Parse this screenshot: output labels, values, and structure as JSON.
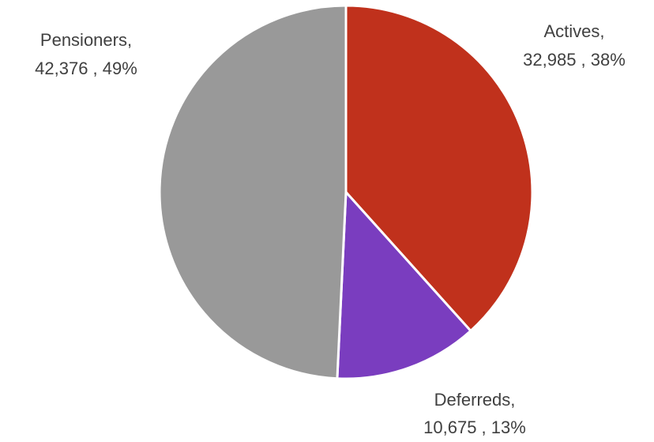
{
  "chart_data": {
    "type": "pie",
    "title": "",
    "slices": [
      {
        "name": "Actives",
        "value": 32985,
        "value_label": "32,985",
        "percent_label": "38%",
        "color": "#c0311c"
      },
      {
        "name": "Deferreds",
        "value": 10675,
        "value_label": "10,675",
        "percent_label": "13%",
        "color": "#7a3dbf"
      },
      {
        "name": "Pensioners",
        "value": 42376,
        "value_label": "42,376",
        "percent_label": "49%",
        "color": "#999999"
      }
    ],
    "start_angle_deg": 0,
    "direction": "clockwise",
    "slice_border_color": "#ffffff",
    "legend": "none",
    "label_style": "outside-with-name-value-percent"
  }
}
